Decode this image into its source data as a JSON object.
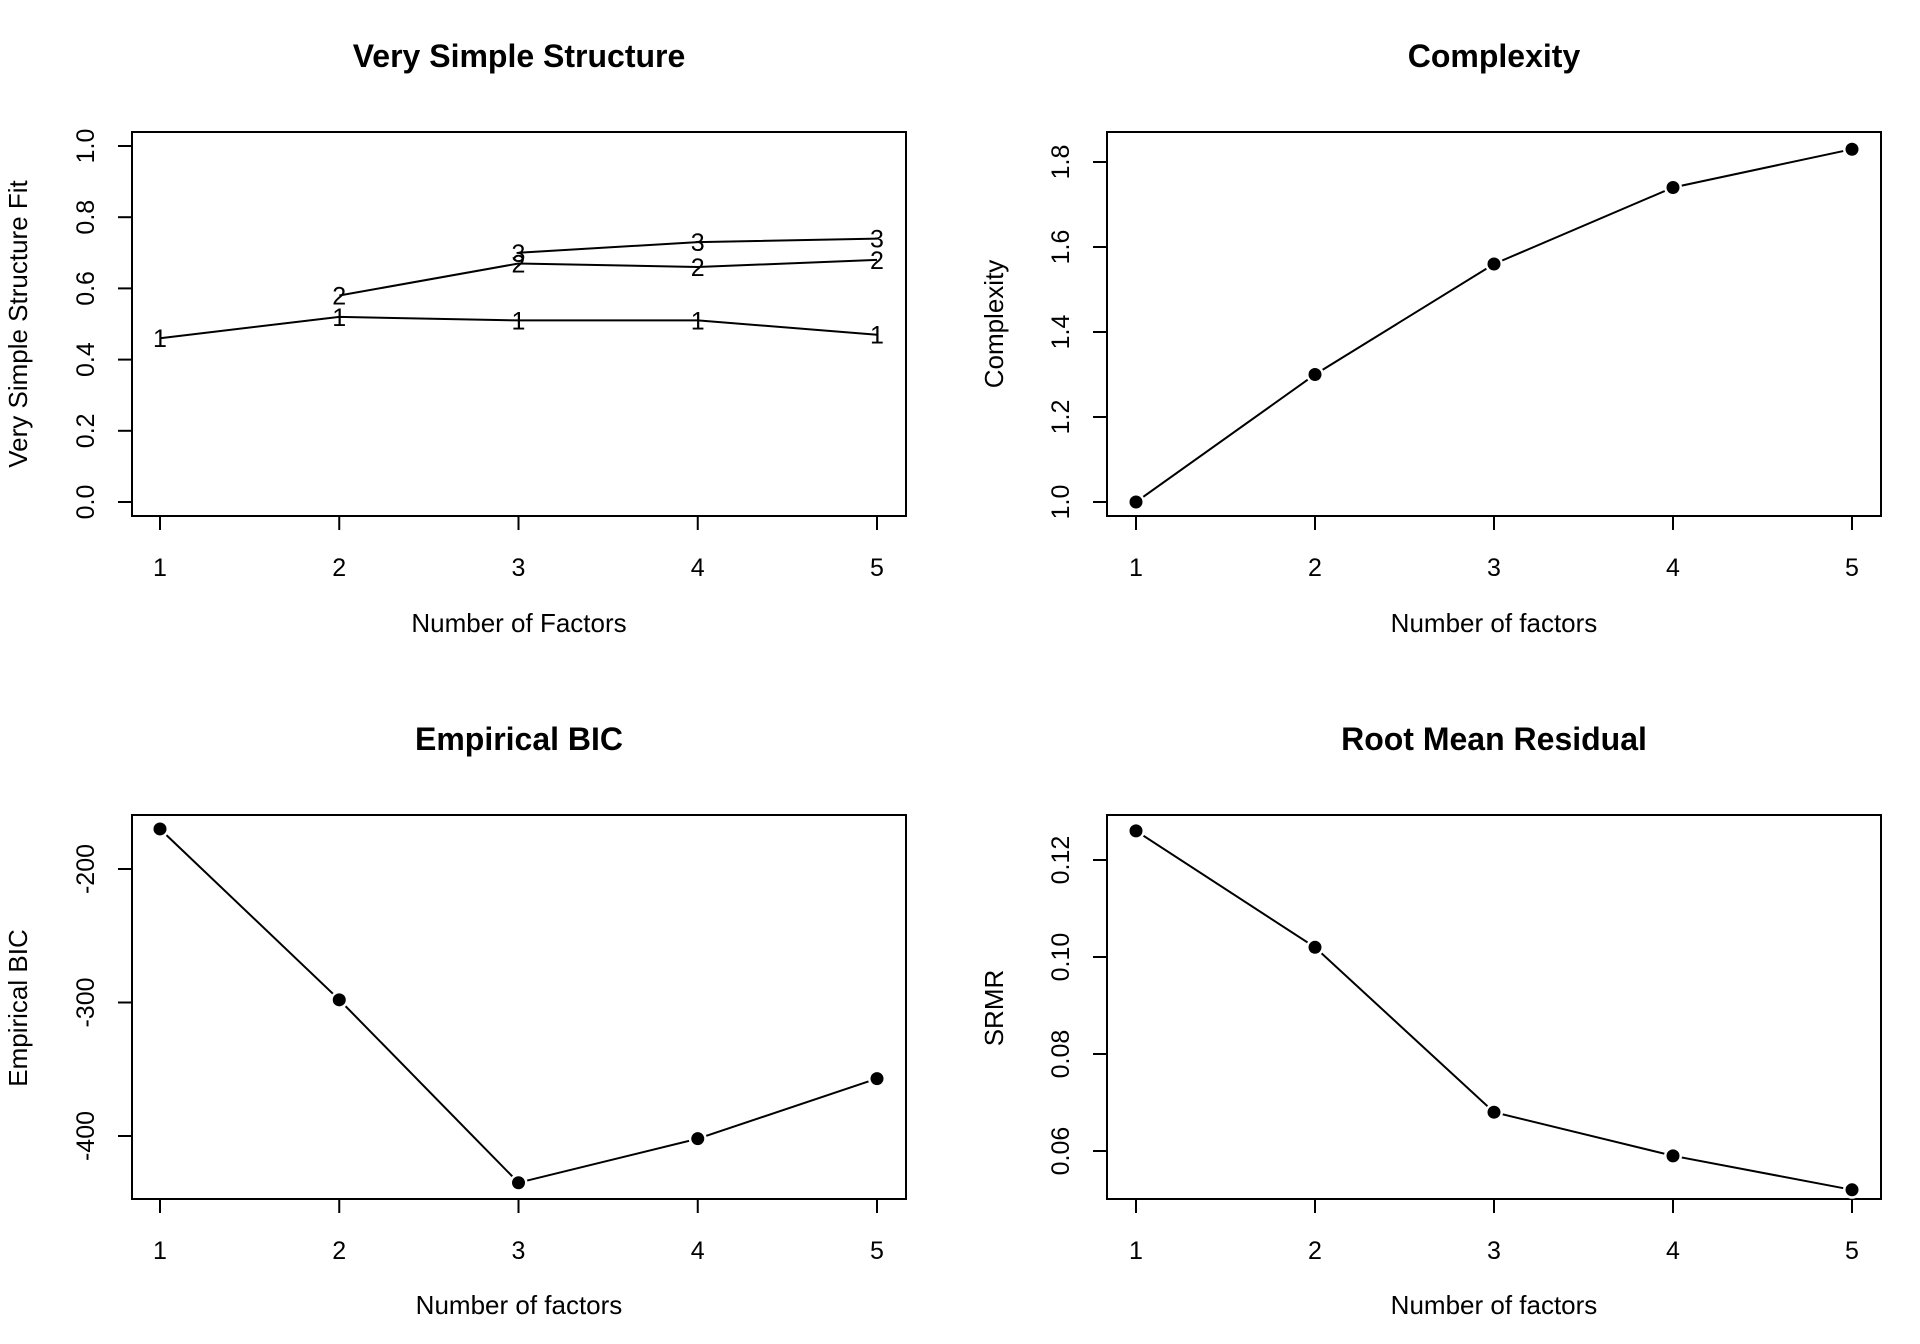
{
  "chart_data": [
    {
      "type": "line",
      "title": "Very Simple Structure",
      "xlabel": "Number of Factors",
      "ylabel": "Very Simple Structure Fit",
      "x": [
        1,
        2,
        3,
        4,
        5
      ],
      "xticks": [
        "1",
        "2",
        "3",
        "4",
        "5"
      ],
      "yticks": [
        "0.0",
        "0.2",
        "0.4",
        "0.6",
        "0.8",
        "1.0"
      ],
      "ylim": [
        0,
        1
      ],
      "marker": "series-name",
      "series": [
        {
          "name": "1",
          "x": [
            1,
            2,
            3,
            4,
            5
          ],
          "values": [
            0.46,
            0.52,
            0.51,
            0.51,
            0.47
          ]
        },
        {
          "name": "2",
          "x": [
            2,
            3,
            4,
            5
          ],
          "values": [
            0.58,
            0.67,
            0.66,
            0.68
          ]
        },
        {
          "name": "3",
          "x": [
            3,
            4,
            5
          ],
          "values": [
            0.7,
            0.73,
            0.74
          ]
        }
      ]
    },
    {
      "type": "line",
      "title": "Complexity",
      "xlabel": "Number of factors",
      "ylabel": "Complexity",
      "x": [
        1,
        2,
        3,
        4,
        5
      ],
      "xticks": [
        "1",
        "2",
        "3",
        "4",
        "5"
      ],
      "yticks": [
        "1.0",
        "1.2",
        "1.4",
        "1.6",
        "1.8"
      ],
      "ylim": [
        1.0,
        1.8
      ],
      "marker": "dot",
      "series": [
        {
          "x": [
            1,
            2,
            3,
            4,
            5
          ],
          "values": [
            1.0,
            1.3,
            1.56,
            1.74,
            1.83
          ]
        }
      ]
    },
    {
      "type": "line",
      "title": "Empirical BIC",
      "xlabel": "Number of factors",
      "ylabel": "Empirical BIC",
      "x": [
        1,
        2,
        3,
        4,
        5
      ],
      "xticks": [
        "1",
        "2",
        "3",
        "4",
        "5"
      ],
      "yticks": [
        "-200",
        "-300",
        "-400"
      ],
      "ylim": [
        -400,
        -200
      ],
      "marker": "dot",
      "series": [
        {
          "x": [
            1,
            2,
            3,
            4,
            5
          ],
          "values": [
            -170,
            -298,
            -435,
            -402,
            -357
          ]
        }
      ]
    },
    {
      "type": "line",
      "title": "Root Mean Residual",
      "xlabel": "Number of factors",
      "ylabel": "SRMR",
      "x": [
        1,
        2,
        3,
        4,
        5
      ],
      "xticks": [
        "1",
        "2",
        "3",
        "4",
        "5"
      ],
      "yticks": [
        "0.06",
        "0.08",
        "0.10",
        "0.12"
      ],
      "ylim": [
        0.06,
        0.12
      ],
      "marker": "dot",
      "series": [
        {
          "x": [
            1,
            2,
            3,
            4,
            5
          ],
          "values": [
            0.126,
            0.102,
            0.068,
            0.059,
            0.052
          ]
        }
      ]
    }
  ]
}
